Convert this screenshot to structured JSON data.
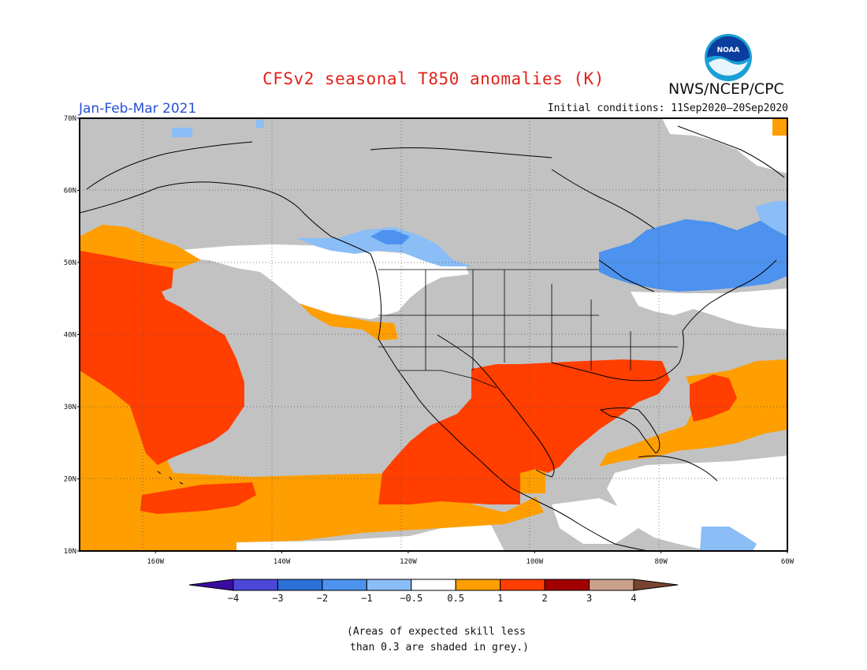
{
  "title": "CFSv2 seasonal T850 anomalies (K)",
  "season": "Jan-Feb-Mar 2021",
  "initial_conditions": "Initial conditions: 11Sep2020–20Sep2020",
  "agency": "NWS/NCEP/CPC",
  "logo": {
    "text": "NOAA",
    "colors": {
      "outer": "#1aa0d6",
      "inner": "#0a3d9e",
      "bird": "#ffffff"
    }
  },
  "map": {
    "lon_range": [
      -172,
      -60
    ],
    "lat_range": [
      10,
      70
    ],
    "lat_ticks": [
      "10N",
      "20N",
      "30N",
      "40N",
      "50N",
      "60N",
      "70N"
    ],
    "lon_ticks": [
      "160W",
      "140W",
      "120W",
      "100W",
      "80W",
      "60W"
    ],
    "grey_note_color": "#c2c2c2"
  },
  "colorbar": {
    "levels": [
      "−4",
      "−3",
      "−2",
      "−1",
      "−0.5",
      "0.5",
      "1",
      "2",
      "3",
      "4"
    ],
    "colors": [
      "#3a0da0",
      "#4c47d9",
      "#2b6fd8",
      "#4c92ee",
      "#8bbdf6",
      "#ffffff",
      "#ff9e00",
      "#ff3e00",
      "#a10000",
      "#c9a08a",
      "#784431"
    ]
  },
  "note": {
    "line1": "(Areas of expected skill less",
    "line2": "than 0.3 are shaded in grey.)"
  }
}
